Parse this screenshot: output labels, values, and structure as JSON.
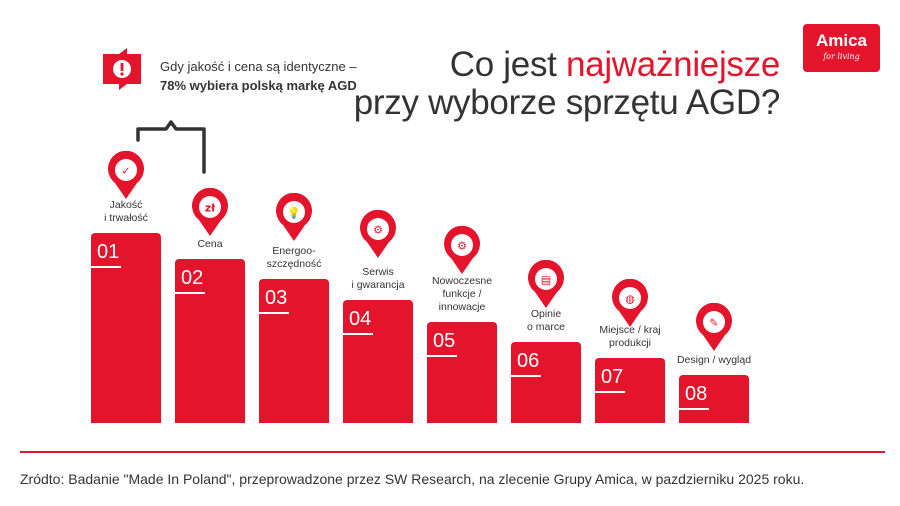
{
  "title": {
    "line1_prefix": "Co jest ",
    "line1_highlight": "najważniejsze",
    "line2": "przy wyborze sprzętu AGD?"
  },
  "logo": {
    "name": "Amica",
    "tagline": "for living"
  },
  "note": {
    "line1": "Gdy jakość i cena są identyczne –",
    "line2": "78% wybiera polską markę AGD",
    "icon": "exclamation-icon"
  },
  "colors": {
    "accent": "#e3142b",
    "text": "#333333"
  },
  "chart_data": {
    "type": "bar",
    "title": "",
    "categories": [
      "Jakość i trwałość",
      "Cena",
      "Energooszczędność",
      "Serwis i gwarancja",
      "Nowoczesne funkcje / innowacje",
      "Opinie o marce",
      "Miejsce / kraj produkcji",
      "Design / wygląd"
    ],
    "ranks": [
      "01",
      "02",
      "03",
      "04",
      "05",
      "06",
      "07",
      "08"
    ],
    "items": [
      {
        "rank": "01",
        "label_lines": [
          "Jakość",
          "i trwałość"
        ],
        "icon": "quality-badge-icon"
      },
      {
        "rank": "02",
        "label_lines": [
          "Cena"
        ],
        "icon": "zloty-coin-icon"
      },
      {
        "rank": "03",
        "label_lines": [
          "Energoo-",
          "szczędność"
        ],
        "icon": "lightbulb-icon"
      },
      {
        "rank": "04",
        "label_lines": [
          "Serwis",
          "i gwarancja"
        ],
        "icon": "wrench-gear-icon"
      },
      {
        "rank": "05",
        "label_lines": [
          "Nowoczesne",
          "funkcje /",
          "innowacje"
        ],
        "icon": "gears-icon"
      },
      {
        "rank": "06",
        "label_lines": [
          "Opinie",
          "o marce"
        ],
        "icon": "chat-bubbles-icon"
      },
      {
        "rank": "07",
        "label_lines": [
          "Miejsce / kraj",
          "produkcji"
        ],
        "icon": "globe-icon"
      },
      {
        "rank": "08",
        "label_lines": [
          "Design / wygląd"
        ],
        "icon": "pen-nib-icon"
      }
    ]
  },
  "footer": {
    "source": "Zródto: Badanie \"Made In Poland\", przeprowadzone przez SW Research, na zlecenie Grupy Amica, w pazdzierniku 2025 roku."
  }
}
